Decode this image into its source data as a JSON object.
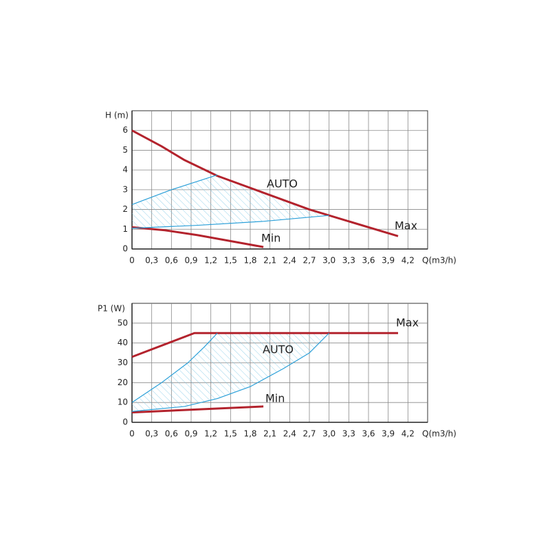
{
  "chart_data": [
    {
      "type": "line",
      "y_label": "H (m)",
      "x_label": "Q(m3/h)",
      "xlim": [
        0,
        4.5
      ],
      "ylim": [
        0,
        7
      ],
      "xticks": [
        0,
        {
          "value": 0.3,
          "label": "0,3"
        },
        {
          "value": 0.6,
          "label": "0,6"
        },
        {
          "value": 0.9,
          "label": "0,9"
        },
        {
          "value": 1.2,
          "label": "1,2"
        },
        {
          "value": 1.5,
          "label": "1,5"
        },
        {
          "value": 1.8,
          "label": "1,8"
        },
        {
          "value": 2.1,
          "label": "2,1"
        },
        {
          "value": 2.4,
          "label": "2,4"
        },
        {
          "value": 2.7,
          "label": "2,7"
        },
        {
          "value": 3.0,
          "label": "3,0"
        },
        {
          "value": 3.3,
          "label": "3,3"
        },
        {
          "value": 3.6,
          "label": "3,6"
        },
        {
          "value": 3.9,
          "label": "3,9"
        },
        {
          "value": 4.2,
          "label": "4,2"
        }
      ],
      "yticks": [
        0,
        1,
        2,
        3,
        4,
        5,
        6
      ],
      "grid": true,
      "series": [
        {
          "color": "#b3232d",
          "x": [
            0,
            0.45,
            0.8,
            1.3,
            2.0,
            2.7,
            3.0,
            4.05
          ],
          "values": [
            6,
            5.2,
            4.5,
            3.7,
            2.85,
            2.0,
            1.7,
            0.65
          ]
        },
        {
          "color": "#b3232d",
          "x": [
            0,
            0.5,
            1.0,
            1.5,
            2.0
          ],
          "values": [
            1.1,
            0.95,
            0.7,
            0.4,
            0.1
          ]
        },
        {
          "color": "#2a9fd8",
          "x": [
            0,
            0.6,
            1.3
          ],
          "values": [
            2.25,
            3.0,
            3.75
          ]
        },
        {
          "color": "#2a9fd8",
          "x": [
            0,
            1.0,
            2.0,
            3.0
          ],
          "values": [
            1.05,
            1.2,
            1.4,
            1.7
          ]
        }
      ],
      "annotations": [
        "AUTO",
        "Max",
        "Min"
      ]
    },
    {
      "type": "line",
      "y_label": "P1 (W)",
      "x_label": "Q(m3/h)",
      "xlim": [
        0,
        4.5
      ],
      "ylim": [
        0,
        60
      ],
      "xticks": [
        0,
        {
          "value": 0.3,
          "label": "0,3"
        },
        {
          "value": 0.6,
          "label": "0,6"
        },
        {
          "value": 0.9,
          "label": "0,9"
        },
        {
          "value": 1.2,
          "label": "1,2"
        },
        {
          "value": 1.5,
          "label": "1,5"
        },
        {
          "value": 1.8,
          "label": "1,8"
        },
        {
          "value": 2.1,
          "label": "2,1"
        },
        {
          "value": 2.4,
          "label": "2,4"
        },
        {
          "value": 2.7,
          "label": "2,7"
        },
        {
          "value": 3.0,
          "label": "3,0"
        },
        {
          "value": 3.3,
          "label": "3,3"
        },
        {
          "value": 3.6,
          "label": "3,6"
        },
        {
          "value": 3.9,
          "label": "3,9"
        },
        {
          "value": 4.2,
          "label": "4,2"
        }
      ],
      "yticks": [
        0,
        10,
        20,
        30,
        40,
        50
      ],
      "grid": true,
      "series": [
        {
          "color": "#b3232d",
          "x": [
            0,
            0.95,
            4.05
          ],
          "values": [
            33,
            45,
            45
          ]
        },
        {
          "color": "#b3232d",
          "x": [
            0,
            1.0,
            2.0
          ],
          "values": [
            5,
            6.5,
            8
          ]
        },
        {
          "color": "#2a9fd8",
          "x": [
            0,
            0.45,
            0.85,
            1.1,
            1.3
          ],
          "values": [
            10,
            20,
            30,
            38,
            45
          ]
        },
        {
          "color": "#2a9fd8",
          "x": [
            0,
            0.8,
            1.3,
            1.8,
            2.3,
            2.7,
            3.0
          ],
          "values": [
            5.5,
            8,
            12,
            18,
            27,
            35,
            45
          ]
        }
      ],
      "annotations": [
        "Max",
        "AUTO",
        "Min"
      ]
    }
  ]
}
